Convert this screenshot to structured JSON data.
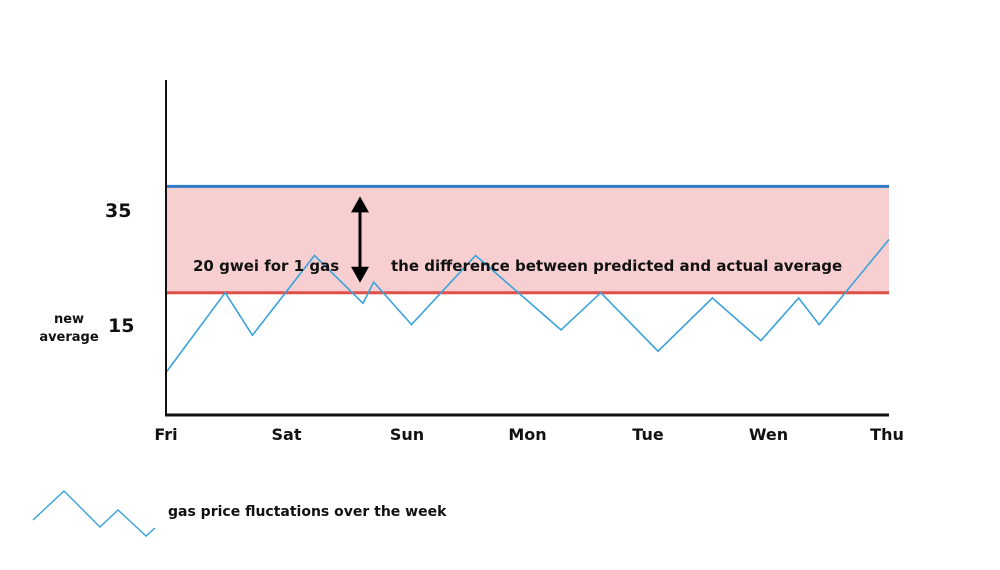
{
  "chart_data": {
    "type": "line",
    "x": [
      "Fri",
      "Sat",
      "Sun",
      "Mon",
      "Tue",
      "Wen",
      "Thu"
    ],
    "series": [
      {
        "name": "gas price fluctations over the week",
        "color": "#3aa3dc",
        "points": [
          [
            0.0,
            0
          ],
          [
            0.61,
            15
          ],
          [
            0.89,
            7
          ],
          [
            1.53,
            22
          ],
          [
            2.03,
            13
          ],
          [
            2.14,
            17
          ],
          [
            2.53,
            9
          ],
          [
            3.19,
            22
          ],
          [
            4.07,
            8
          ],
          [
            4.48,
            15
          ],
          [
            5.07,
            4
          ],
          [
            5.63,
            14
          ],
          [
            6.13,
            6
          ],
          [
            6.52,
            14
          ],
          [
            6.73,
            9
          ],
          [
            7.45,
            25
          ]
        ]
      }
    ],
    "reference_lines": [
      {
        "value": 35,
        "color": "#2f78c4"
      },
      {
        "value": 15,
        "color": "#e0504a"
      }
    ],
    "band": {
      "from": 15,
      "to": 35,
      "color": "#f8cfd0"
    },
    "yticks": [
      35,
      15
    ],
    "ylim": [
      -8,
      55
    ],
    "xlim": [
      0,
      7.45
    ],
    "grid": false
  },
  "labels": {
    "y_tick_35": "35",
    "y_tick_15": "15",
    "new_average": "new average",
    "band_value": "20 gwei for 1 gas",
    "band_note": "the difference between predicted and actual average",
    "legend": "gas price fluctations over the week"
  }
}
